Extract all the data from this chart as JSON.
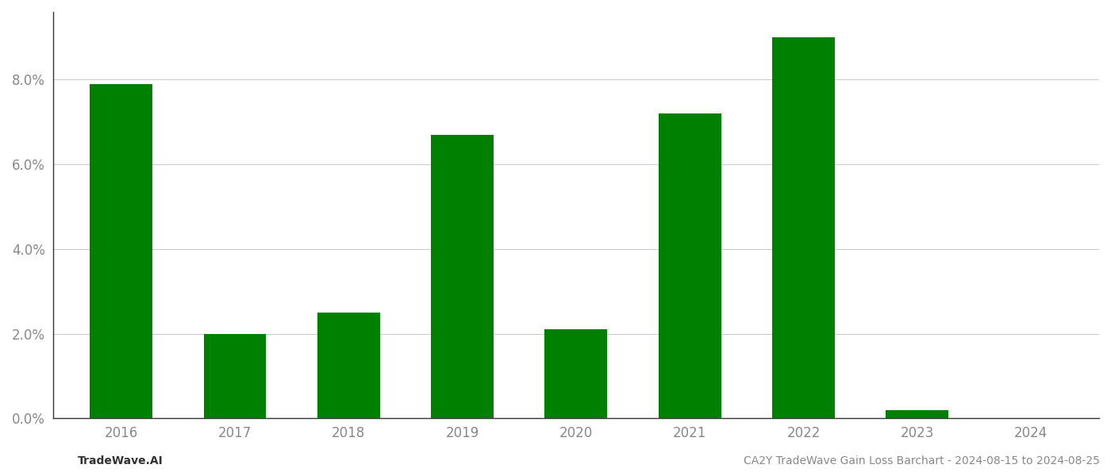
{
  "years": [
    "2016",
    "2017",
    "2018",
    "2019",
    "2020",
    "2021",
    "2022",
    "2023",
    "2024"
  ],
  "values": [
    0.079,
    0.02,
    0.025,
    0.067,
    0.021,
    0.072,
    0.09,
    0.002,
    0.0
  ],
  "bar_color": "#008000",
  "background_color": "#ffffff",
  "grid_color": "#cccccc",
  "ylim": [
    0,
    0.096
  ],
  "ytick_values": [
    0.0,
    0.02,
    0.04,
    0.06,
    0.08
  ],
  "ytick_labels": [
    "0.0%",
    "2.0%",
    "4.0%",
    "6.0%",
    "8.0%"
  ],
  "bottom_left_text": "TradeWave.AI",
  "bottom_right_text": "CA2Y TradeWave Gain Loss Barchart - 2024-08-15 to 2024-08-25",
  "tick_fontsize": 12,
  "annotation_fontsize": 10,
  "bar_width": 0.55
}
